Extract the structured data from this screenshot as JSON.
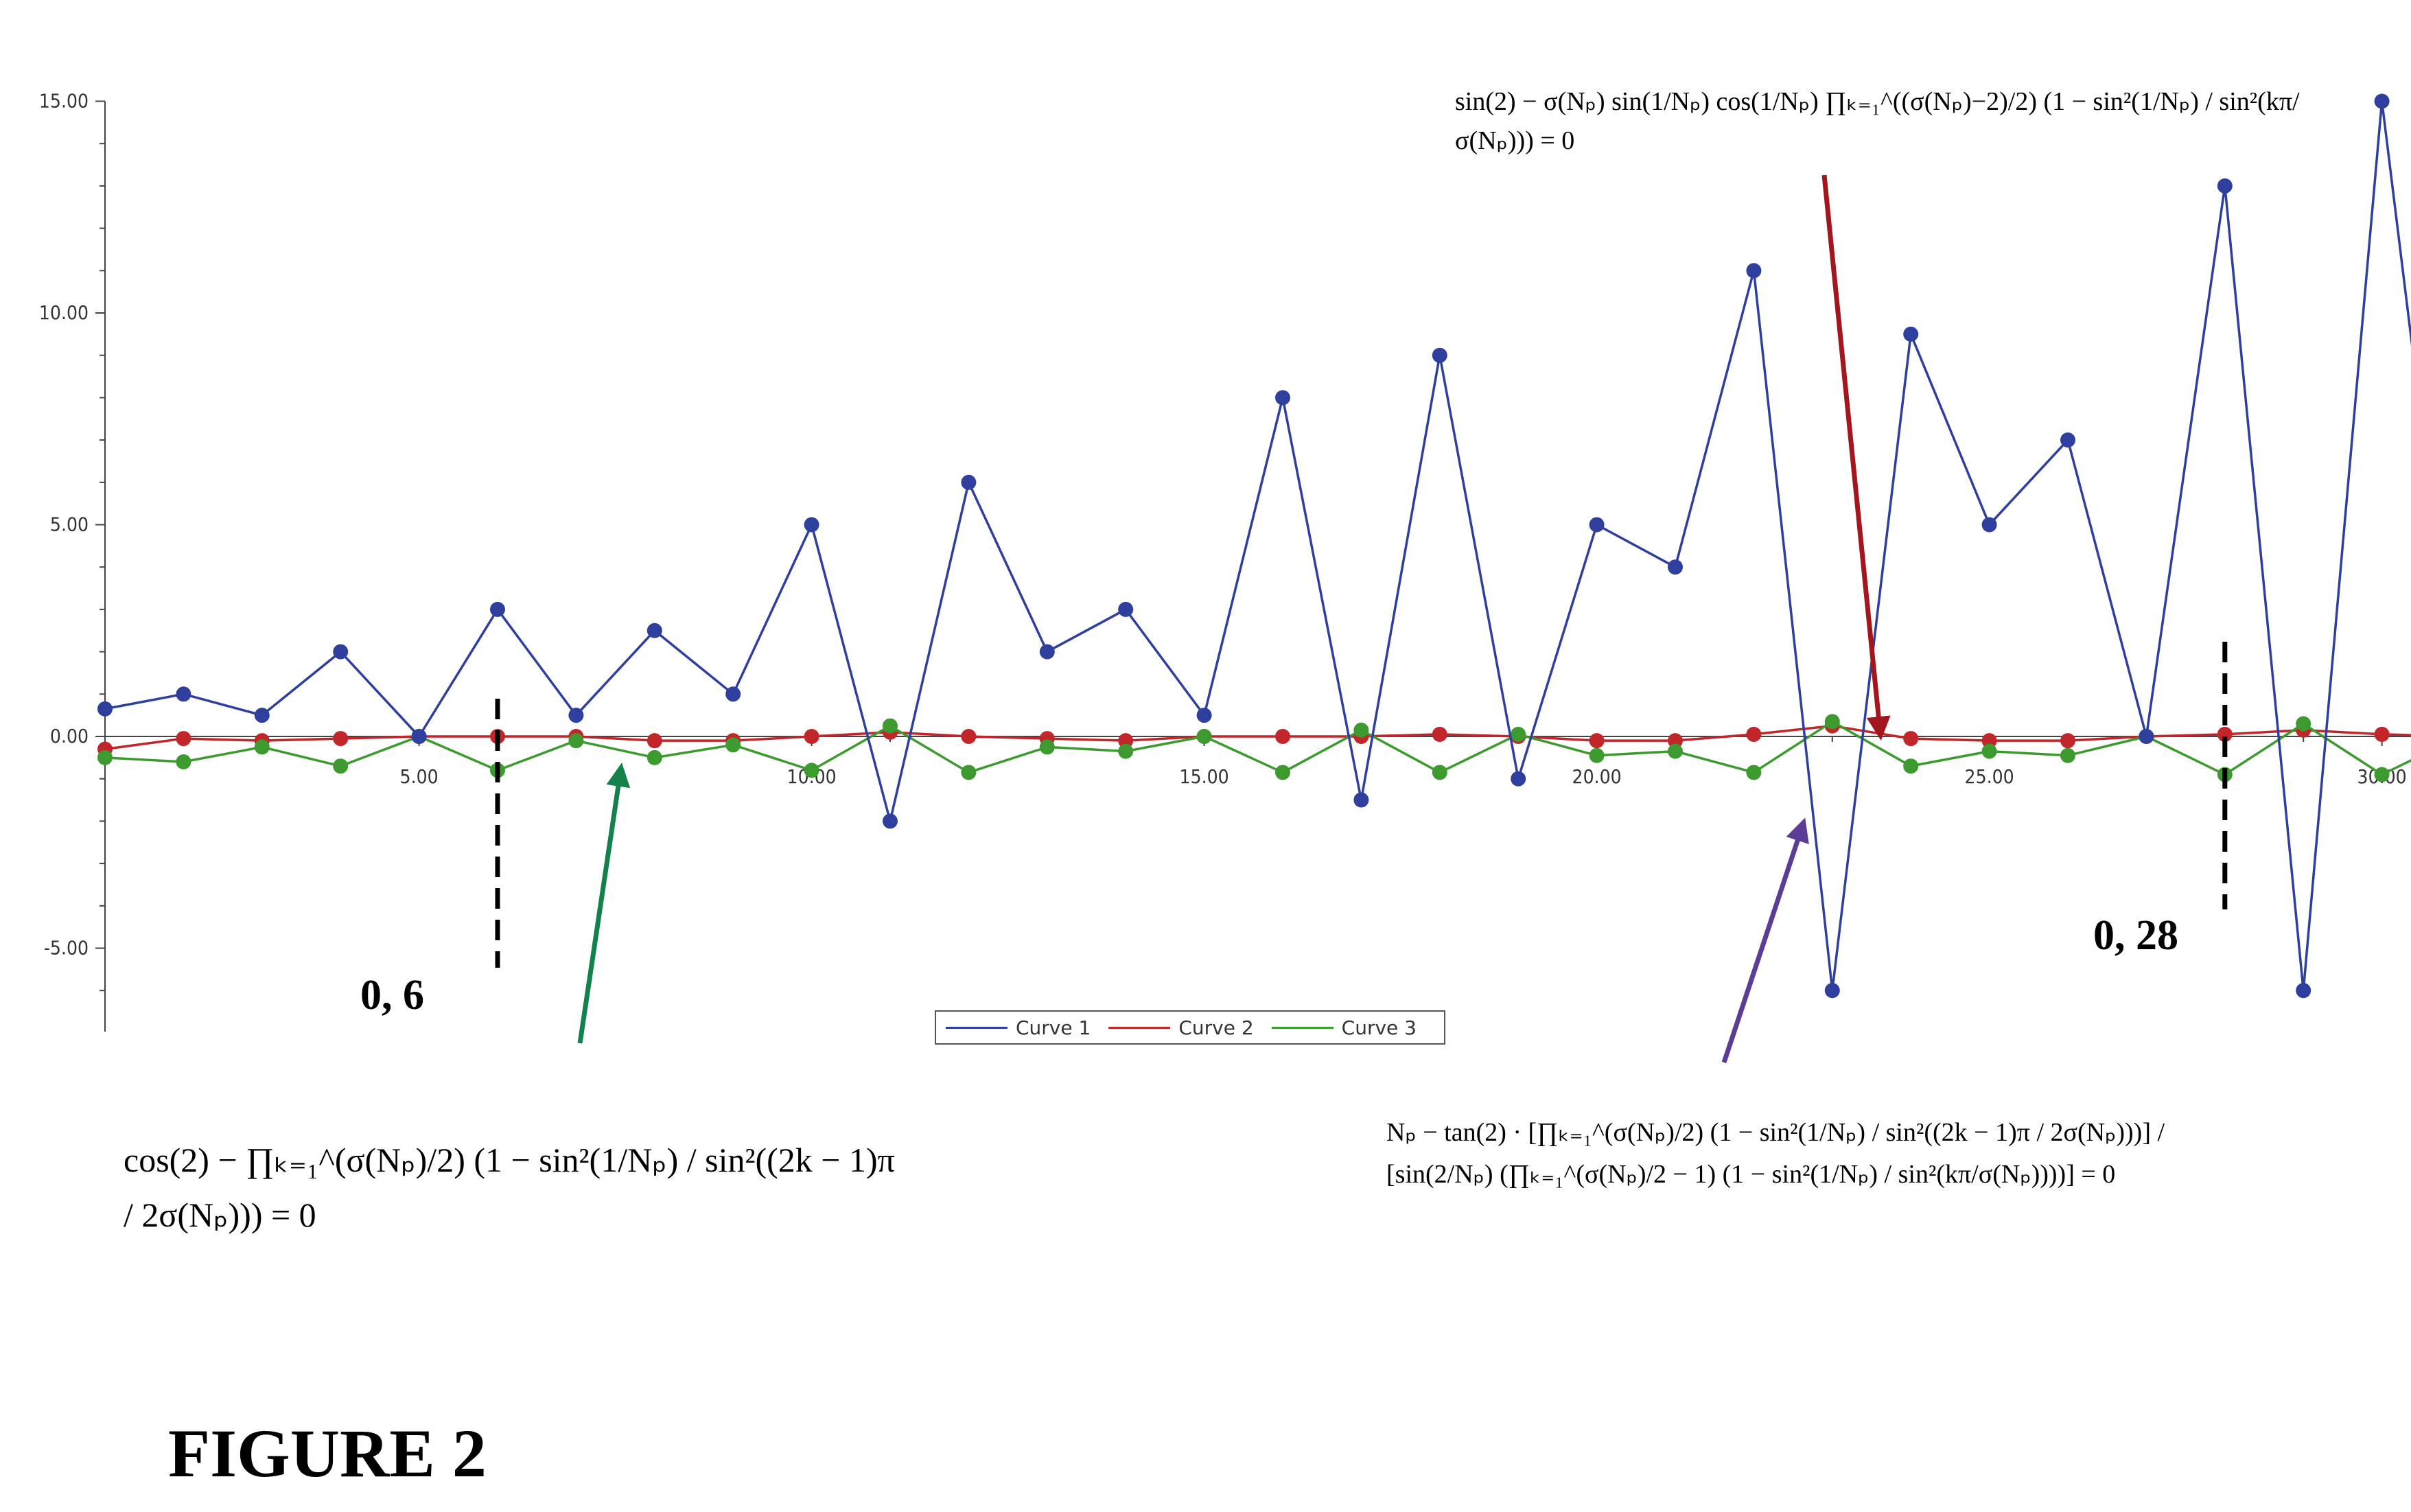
{
  "chart_data": {
    "type": "line",
    "xlim": [
      1,
      31
    ],
    "ylim": [
      -6,
      15
    ],
    "x_ticks": [
      5,
      10,
      15,
      20,
      25,
      30
    ],
    "x_tick_labels": [
      "5.00",
      "10.00",
      "15.00",
      "20.00",
      "25.00",
      "30.00"
    ],
    "y_ticks": [
      -5,
      0,
      5,
      10,
      15
    ],
    "y_tick_labels": [
      "-5.00",
      "0.00",
      "5.00",
      "10.00",
      "15.00"
    ],
    "grid": false,
    "legend_position": "bottom-center",
    "x": [
      1,
      2,
      3,
      4,
      5,
      6,
      7,
      8,
      9,
      10,
      11,
      12,
      13,
      14,
      15,
      16,
      17,
      18,
      19,
      20,
      21,
      22,
      23,
      24,
      25,
      26,
      27,
      28,
      29,
      30,
      31
    ],
    "series": [
      {
        "name": "Curve 1",
        "color": "#2e3f9e",
        "values": [
          0.65,
          1,
          0.5,
          2,
          0,
          3,
          0.5,
          2.5,
          1,
          5,
          -2,
          6,
          2,
          3,
          0.5,
          8,
          -1.5,
          9,
          -1,
          5,
          4,
          11,
          -6,
          9.5,
          5,
          7,
          0,
          13,
          -6,
          15,
          0
        ]
      },
      {
        "name": "Curve 2",
        "color": "#c0262a",
        "values": [
          -0.3,
          -0.05,
          -0.1,
          -0.05,
          0,
          0,
          0,
          -0.1,
          -0.1,
          0,
          0.1,
          0,
          -0.05,
          -0.1,
          0,
          0,
          0,
          0.05,
          0,
          -0.1,
          -0.1,
          0.05,
          0.25,
          -0.05,
          -0.1,
          -0.1,
          0,
          0.05,
          0.15,
          0.05,
          0
        ]
      },
      {
        "name": "Curve 3",
        "color": "#3d9a2f",
        "values": [
          -0.5,
          -0.6,
          -0.25,
          -0.7,
          0,
          -0.8,
          -0.1,
          -0.5,
          -0.2,
          -0.8,
          0.25,
          -0.85,
          -0.25,
          -0.35,
          0,
          -0.85,
          0.15,
          -0.85,
          0.05,
          -0.45,
          -0.35,
          -0.85,
          0.35,
          -0.7,
          -0.35,
          -0.45,
          0,
          -0.9,
          0.3,
          -0.9,
          0
        ]
      }
    ]
  },
  "annotations": {
    "point_a": "0, 6",
    "point_b": "0, 28",
    "figure_label": "FIGURE 2",
    "arrow_colors": {
      "green": "#12824a",
      "red": "#a3161d",
      "purple": "#5b3c96"
    },
    "equation_top": "sin(2) − σ(Nₚ) sin(1/Nₚ) cos(1/Nₚ) ∏ₖ₌₁^((σ(Nₚ)−2)/2) (1 − sin²(1/Nₚ) / sin²(kπ/σ(Nₚ))) = 0",
    "equation_left": "cos(2) − ∏ₖ₌₁^(σ(Nₚ)/2) (1 − sin²(1/Nₚ) / sin²((2k − 1)π / 2σ(Nₚ))) = 0",
    "equation_right": "Nₚ − tan(2) · [∏ₖ₌₁^(σ(Nₚ)/2) (1 − sin²(1/Nₚ) / sin²((2k − 1)π / 2σ(Nₚ)))] / [sin(2/Nₚ) (∏ₖ₌₁^(σ(Nₚ)/2 − 1) (1 − sin²(1/Nₚ) / sin²(kπ/σ(Nₚ))))] = 0"
  }
}
